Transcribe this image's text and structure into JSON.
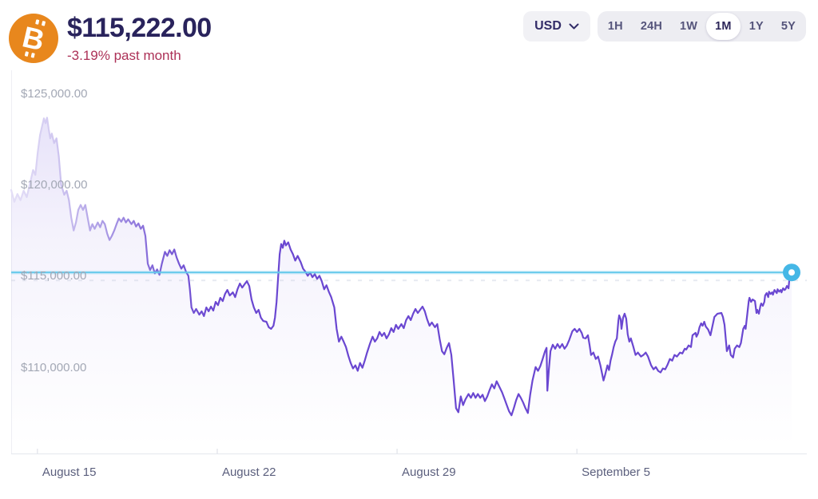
{
  "header": {
    "price": "$115,222.00",
    "change": "-3.19% past month",
    "currency": "USD",
    "ranges": [
      {
        "label": "1H",
        "active": false
      },
      {
        "label": "24H",
        "active": false
      },
      {
        "label": "1W",
        "active": false
      },
      {
        "label": "1M",
        "active": true
      },
      {
        "label": "1Y",
        "active": false
      },
      {
        "label": "5Y",
        "active": false
      }
    ]
  },
  "icons": {
    "bitcoin_symbol": "B",
    "chevron_down": "chevron-down"
  },
  "colors": {
    "line_purple": "#6A47D1",
    "line_fade_start": "#E4DFF7",
    "fill_purple": "#6E52DA",
    "current_price_cyan": "#63C8EB",
    "marker_cyan": "#45B7E6",
    "bitcoin_orange": "#E8871D",
    "title_navy": "#29235C",
    "change_red": "#AC3157",
    "y_label_gray": "#A3A8B5",
    "x_label_gray": "#5B5F7D",
    "pill_bg": "#EDEDF2",
    "axis_line": "#E4E7EE"
  },
  "chart_data": {
    "type": "area",
    "title": "Bitcoin price, past month (USD)",
    "legend": false,
    "grid": "minimal",
    "current_price": 115222,
    "dashed_gridline_price": 115000,
    "ylim": [
      105300,
      126300
    ],
    "y_ticks": [
      {
        "price": 125000,
        "label": "$125,000.00"
      },
      {
        "price": 120000,
        "label": "$120,000.00"
      },
      {
        "price": 115000,
        "label": "$115,000.00"
      },
      {
        "price": 110000,
        "label": "$110,000.00"
      }
    ],
    "x_ticks": [
      {
        "label": "August 15",
        "pos": 0.033
      },
      {
        "label": "August 22",
        "pos": 0.259
      },
      {
        "label": "August 29",
        "pos": 0.485
      },
      {
        "label": "September 5",
        "pos": 0.711
      }
    ],
    "points": [
      [
        0.0,
        119740
      ],
      [
        0.004,
        119090
      ],
      [
        0.008,
        119520
      ],
      [
        0.012,
        119180
      ],
      [
        0.016,
        119700
      ],
      [
        0.02,
        119350
      ],
      [
        0.025,
        120260
      ],
      [
        0.028,
        120830
      ],
      [
        0.031,
        120570
      ],
      [
        0.034,
        121790
      ],
      [
        0.037,
        122740
      ],
      [
        0.04,
        123310
      ],
      [
        0.042,
        123660
      ],
      [
        0.044,
        123400
      ],
      [
        0.046,
        123700
      ],
      [
        0.048,
        123090
      ],
      [
        0.05,
        122570
      ],
      [
        0.052,
        122830
      ],
      [
        0.055,
        122310
      ],
      [
        0.058,
        122570
      ],
      [
        0.061,
        121570
      ],
      [
        0.064,
        120050
      ],
      [
        0.068,
        119480
      ],
      [
        0.071,
        119700
      ],
      [
        0.074,
        119180
      ],
      [
        0.077,
        118220
      ],
      [
        0.08,
        117520
      ],
      [
        0.083,
        117960
      ],
      [
        0.086,
        118650
      ],
      [
        0.089,
        118920
      ],
      [
        0.092,
        118650
      ],
      [
        0.095,
        118920
      ],
      [
        0.098,
        118220
      ],
      [
        0.101,
        117520
      ],
      [
        0.104,
        117870
      ],
      [
        0.107,
        117610
      ],
      [
        0.111,
        117960
      ],
      [
        0.114,
        117700
      ],
      [
        0.117,
        118050
      ],
      [
        0.12,
        117870
      ],
      [
        0.123,
        117350
      ],
      [
        0.126,
        117000
      ],
      [
        0.129,
        117220
      ],
      [
        0.132,
        117520
      ],
      [
        0.135,
        117870
      ],
      [
        0.138,
        118180
      ],
      [
        0.141,
        118000
      ],
      [
        0.144,
        118220
      ],
      [
        0.147,
        117960
      ],
      [
        0.15,
        118130
      ],
      [
        0.154,
        117870
      ],
      [
        0.157,
        118050
      ],
      [
        0.16,
        117740
      ],
      [
        0.163,
        117910
      ],
      [
        0.166,
        117610
      ],
      [
        0.169,
        117780
      ],
      [
        0.172,
        117220
      ],
      [
        0.175,
        115700
      ],
      [
        0.178,
        115350
      ],
      [
        0.181,
        115610
      ],
      [
        0.184,
        115170
      ],
      [
        0.187,
        115390
      ],
      [
        0.19,
        115090
      ],
      [
        0.193,
        115700
      ],
      [
        0.197,
        116350
      ],
      [
        0.2,
        116130
      ],
      [
        0.203,
        116440
      ],
      [
        0.206,
        116220
      ],
      [
        0.209,
        116480
      ],
      [
        0.212,
        116040
      ],
      [
        0.215,
        115700
      ],
      [
        0.218,
        115430
      ],
      [
        0.221,
        115610
      ],
      [
        0.224,
        115260
      ],
      [
        0.227,
        115040
      ],
      [
        0.229,
        114300
      ],
      [
        0.231,
        113300
      ],
      [
        0.234,
        113000
      ],
      [
        0.237,
        113220
      ],
      [
        0.241,
        112910
      ],
      [
        0.244,
        113090
      ],
      [
        0.247,
        112830
      ],
      [
        0.25,
        113300
      ],
      [
        0.253,
        113090
      ],
      [
        0.256,
        113350
      ],
      [
        0.259,
        113130
      ],
      [
        0.262,
        113610
      ],
      [
        0.265,
        113430
      ],
      [
        0.268,
        113830
      ],
      [
        0.271,
        113650
      ],
      [
        0.274,
        114040
      ],
      [
        0.277,
        114260
      ],
      [
        0.28,
        113960
      ],
      [
        0.284,
        114130
      ],
      [
        0.287,
        113870
      ],
      [
        0.29,
        114300
      ],
      [
        0.293,
        114610
      ],
      [
        0.296,
        114390
      ],
      [
        0.299,
        114570
      ],
      [
        0.302,
        114740
      ],
      [
        0.305,
        114480
      ],
      [
        0.308,
        113740
      ],
      [
        0.311,
        113300
      ],
      [
        0.314,
        113000
      ],
      [
        0.317,
        113170
      ],
      [
        0.32,
        112740
      ],
      [
        0.323,
        112560
      ],
      [
        0.327,
        112520
      ],
      [
        0.33,
        112220
      ],
      [
        0.333,
        112130
      ],
      [
        0.336,
        112300
      ],
      [
        0.338,
        112740
      ],
      [
        0.34,
        113610
      ],
      [
        0.342,
        114910
      ],
      [
        0.344,
        116220
      ],
      [
        0.346,
        116780
      ],
      [
        0.348,
        116570
      ],
      [
        0.35,
        116960
      ],
      [
        0.352,
        116700
      ],
      [
        0.355,
        116870
      ],
      [
        0.358,
        116480
      ],
      [
        0.361,
        116220
      ],
      [
        0.364,
        115870
      ],
      [
        0.367,
        116130
      ],
      [
        0.371,
        115780
      ],
      [
        0.374,
        115430
      ],
      [
        0.377,
        115260
      ],
      [
        0.38,
        115040
      ],
      [
        0.383,
        115220
      ],
      [
        0.386,
        114960
      ],
      [
        0.389,
        115130
      ],
      [
        0.392,
        114870
      ],
      [
        0.395,
        115040
      ],
      [
        0.398,
        114740
      ],
      [
        0.401,
        114300
      ],
      [
        0.404,
        114520
      ],
      [
        0.407,
        114170
      ],
      [
        0.41,
        113870
      ],
      [
        0.414,
        113300
      ],
      [
        0.417,
        112130
      ],
      [
        0.42,
        111430
      ],
      [
        0.423,
        111700
      ],
      [
        0.426,
        111430
      ],
      [
        0.429,
        111130
      ],
      [
        0.432,
        110650
      ],
      [
        0.435,
        110260
      ],
      [
        0.438,
        109960
      ],
      [
        0.441,
        110130
      ],
      [
        0.444,
        109830
      ],
      [
        0.447,
        110260
      ],
      [
        0.45,
        110000
      ],
      [
        0.453,
        110390
      ],
      [
        0.456,
        110830
      ],
      [
        0.46,
        111350
      ],
      [
        0.463,
        111700
      ],
      [
        0.466,
        111430
      ],
      [
        0.469,
        111610
      ],
      [
        0.472,
        111960
      ],
      [
        0.475,
        111740
      ],
      [
        0.478,
        111910
      ],
      [
        0.481,
        111610
      ],
      [
        0.484,
        111830
      ],
      [
        0.487,
        112170
      ],
      [
        0.49,
        111960
      ],
      [
        0.493,
        112350
      ],
      [
        0.496,
        112130
      ],
      [
        0.5,
        112390
      ],
      [
        0.503,
        112170
      ],
      [
        0.506,
        112610
      ],
      [
        0.509,
        112830
      ],
      [
        0.512,
        112610
      ],
      [
        0.515,
        112960
      ],
      [
        0.518,
        113220
      ],
      [
        0.521,
        113000
      ],
      [
        0.524,
        113170
      ],
      [
        0.527,
        113350
      ],
      [
        0.53,
        113090
      ],
      [
        0.533,
        112650
      ],
      [
        0.536,
        112300
      ],
      [
        0.539,
        112480
      ],
      [
        0.543,
        112220
      ],
      [
        0.546,
        112390
      ],
      [
        0.549,
        111570
      ],
      [
        0.552,
        110910
      ],
      [
        0.555,
        110740
      ],
      [
        0.558,
        111090
      ],
      [
        0.561,
        111350
      ],
      [
        0.564,
        110700
      ],
      [
        0.567,
        109260
      ],
      [
        0.57,
        107780
      ],
      [
        0.573,
        107560
      ],
      [
        0.576,
        108430
      ],
      [
        0.579,
        107950
      ],
      [
        0.582,
        108260
      ],
      [
        0.586,
        108560
      ],
      [
        0.589,
        108350
      ],
      [
        0.592,
        108610
      ],
      [
        0.595,
        108350
      ],
      [
        0.598,
        108560
      ],
      [
        0.601,
        108350
      ],
      [
        0.604,
        108520
      ],
      [
        0.607,
        108170
      ],
      [
        0.61,
        108430
      ],
      [
        0.613,
        108780
      ],
      [
        0.616,
        109090
      ],
      [
        0.619,
        108870
      ],
      [
        0.622,
        109260
      ],
      [
        0.625,
        109000
      ],
      [
        0.629,
        108650
      ],
      [
        0.632,
        108300
      ],
      [
        0.635,
        107950
      ],
      [
        0.638,
        107610
      ],
      [
        0.641,
        107390
      ],
      [
        0.644,
        107780
      ],
      [
        0.647,
        108220
      ],
      [
        0.65,
        108560
      ],
      [
        0.653,
        108350
      ],
      [
        0.656,
        108090
      ],
      [
        0.659,
        107780
      ],
      [
        0.662,
        107520
      ],
      [
        0.665,
        108520
      ],
      [
        0.668,
        109300
      ],
      [
        0.672,
        110040
      ],
      [
        0.675,
        109830
      ],
      [
        0.678,
        110090
      ],
      [
        0.681,
        110480
      ],
      [
        0.684,
        110910
      ],
      [
        0.686,
        111090
      ],
      [
        0.687,
        108740
      ],
      [
        0.689,
        109960
      ],
      [
        0.691,
        110910
      ],
      [
        0.694,
        111260
      ],
      [
        0.697,
        111040
      ],
      [
        0.7,
        111300
      ],
      [
        0.703,
        111090
      ],
      [
        0.706,
        111300
      ],
      [
        0.709,
        111040
      ],
      [
        0.712,
        111220
      ],
      [
        0.715,
        111520
      ],
      [
        0.719,
        112000
      ],
      [
        0.722,
        112130
      ],
      [
        0.725,
        111960
      ],
      [
        0.728,
        112130
      ],
      [
        0.731,
        111910
      ],
      [
        0.733,
        111650
      ],
      [
        0.736,
        111610
      ],
      [
        0.739,
        111780
      ],
      [
        0.741,
        111260
      ],
      [
        0.743,
        110700
      ],
      [
        0.746,
        110830
      ],
      [
        0.749,
        110480
      ],
      [
        0.752,
        110610
      ],
      [
        0.755,
        110130
      ],
      [
        0.757,
        109700
      ],
      [
        0.759,
        109300
      ],
      [
        0.761,
        109610
      ],
      [
        0.764,
        110130
      ],
      [
        0.766,
        109870
      ],
      [
        0.768,
        110390
      ],
      [
        0.77,
        110740
      ],
      [
        0.772,
        111130
      ],
      [
        0.774,
        111430
      ],
      [
        0.776,
        111610
      ],
      [
        0.778,
        112570
      ],
      [
        0.779,
        112870
      ],
      [
        0.781,
        112650
      ],
      [
        0.782,
        112130
      ],
      [
        0.784,
        112740
      ],
      [
        0.786,
        112960
      ],
      [
        0.788,
        112690
      ],
      [
        0.79,
        111830
      ],
      [
        0.792,
        111430
      ],
      [
        0.794,
        111610
      ],
      [
        0.797,
        111170
      ],
      [
        0.8,
        110700
      ],
      [
        0.803,
        110830
      ],
      [
        0.807,
        110610
      ],
      [
        0.81,
        110700
      ],
      [
        0.813,
        110830
      ],
      [
        0.816,
        110610
      ],
      [
        0.82,
        110130
      ],
      [
        0.823,
        109910
      ],
      [
        0.826,
        110040
      ],
      [
        0.829,
        109830
      ],
      [
        0.832,
        109740
      ],
      [
        0.835,
        109960
      ],
      [
        0.838,
        109910
      ],
      [
        0.841,
        110170
      ],
      [
        0.844,
        110480
      ],
      [
        0.847,
        110390
      ],
      [
        0.85,
        110700
      ],
      [
        0.853,
        110610
      ],
      [
        0.857,
        110830
      ],
      [
        0.86,
        110780
      ],
      [
        0.863,
        111040
      ],
      [
        0.865,
        111000
      ],
      [
        0.868,
        111220
      ],
      [
        0.871,
        111130
      ],
      [
        0.873,
        111780
      ],
      [
        0.877,
        111910
      ],
      [
        0.878,
        111700
      ],
      [
        0.88,
        111870
      ],
      [
        0.882,
        112220
      ],
      [
        0.884,
        112430
      ],
      [
        0.886,
        112300
      ],
      [
        0.888,
        112520
      ],
      [
        0.89,
        112260
      ],
      [
        0.893,
        112090
      ],
      [
        0.896,
        111780
      ],
      [
        0.901,
        112780
      ],
      [
        0.905,
        112960
      ],
      [
        0.91,
        113000
      ],
      [
        0.912,
        112780
      ],
      [
        0.914,
        112350
      ],
      [
        0.917,
        110910
      ],
      [
        0.92,
        111220
      ],
      [
        0.922,
        110700
      ],
      [
        0.925,
        110560
      ],
      [
        0.927,
        111040
      ],
      [
        0.93,
        111220
      ],
      [
        0.933,
        111130
      ],
      [
        0.935,
        111350
      ],
      [
        0.938,
        112130
      ],
      [
        0.94,
        112300
      ],
      [
        0.941,
        112130
      ],
      [
        0.945,
        113650
      ],
      [
        0.946,
        113830
      ],
      [
        0.948,
        113610
      ],
      [
        0.95,
        113740
      ],
      [
        0.953,
        113650
      ],
      [
        0.955,
        113000
      ],
      [
        0.956,
        113170
      ],
      [
        0.958,
        112960
      ],
      [
        0.96,
        113390
      ],
      [
        0.961,
        113520
      ],
      [
        0.963,
        113390
      ],
      [
        0.965,
        113610
      ],
      [
        0.966,
        113960
      ],
      [
        0.968,
        114090
      ],
      [
        0.97,
        113870
      ],
      [
        0.971,
        114170
      ],
      [
        0.973,
        114040
      ],
      [
        0.975,
        114130
      ],
      [
        0.976,
        114000
      ],
      [
        0.978,
        114260
      ],
      [
        0.981,
        114090
      ],
      [
        0.982,
        114300
      ],
      [
        0.984,
        114170
      ],
      [
        0.986,
        114260
      ],
      [
        0.987,
        114130
      ],
      [
        0.989,
        114350
      ],
      [
        0.991,
        114260
      ],
      [
        0.992,
        114300
      ],
      [
        0.994,
        114480
      ],
      [
        0.996,
        114350
      ],
      [
        0.997,
        114830
      ],
      [
        0.999,
        115260
      ],
      [
        1.0,
        115222
      ]
    ]
  }
}
